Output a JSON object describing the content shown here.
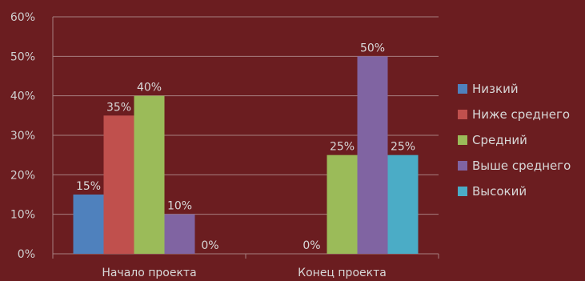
{
  "chart_data": {
    "type": "bar",
    "title": "",
    "xlabel": "",
    "ylabel": "",
    "ylim": [
      0,
      60
    ],
    "y_ticks": [
      "0%",
      "10%",
      "20%",
      "30%",
      "40%",
      "50%",
      "60%"
    ],
    "categories": [
      "Начало проекта",
      "Конец проекта"
    ],
    "series": [
      {
        "name": "Низкий",
        "color": "#4f81bd",
        "values": [
          15,
          0
        ],
        "labels": [
          "15%",
          ""
        ]
      },
      {
        "name": "Ниже среднего",
        "color": "#c0504d",
        "values": [
          35,
          0
        ],
        "labels": [
          "35%",
          "0%"
        ]
      },
      {
        "name": "Средний",
        "color": "#9bbb59",
        "values": [
          40,
          25
        ],
        "labels": [
          "40%",
          "25%"
        ]
      },
      {
        "name": "Выше среднего",
        "color": "#8064a2",
        "values": [
          10,
          50
        ],
        "labels": [
          "10%",
          "50%"
        ]
      },
      {
        "name": "Высокий",
        "color": "#4bacc6",
        "values": [
          0,
          25
        ],
        "labels": [
          "0%",
          "25%"
        ]
      }
    ],
    "grid": true,
    "legend_position": "right"
  }
}
